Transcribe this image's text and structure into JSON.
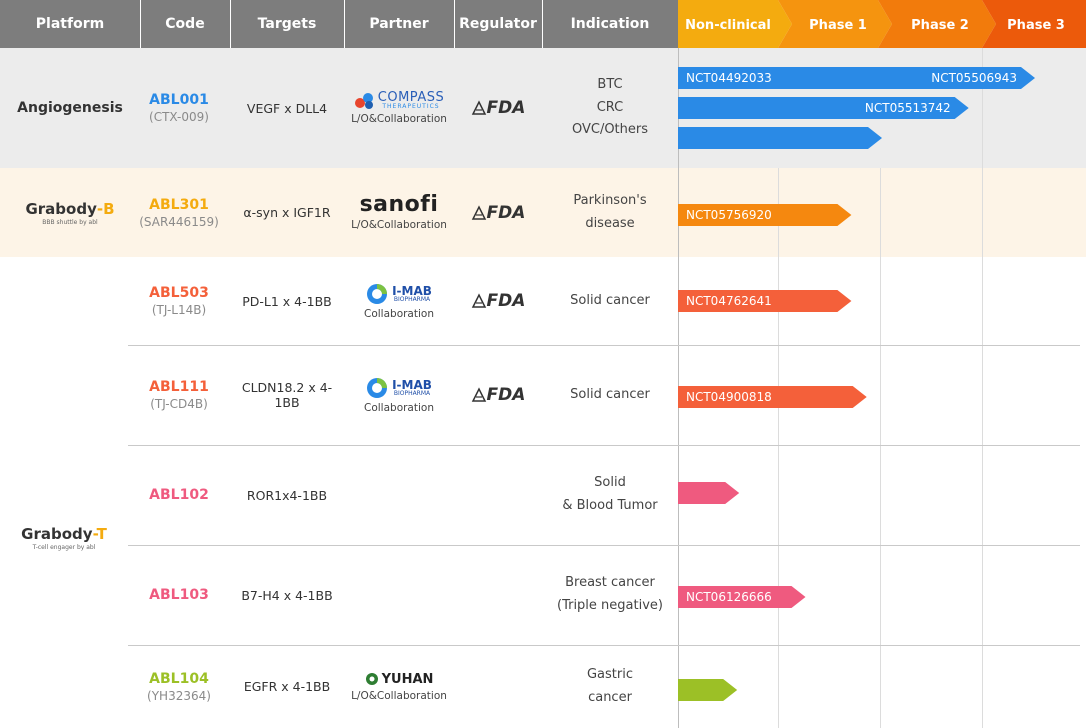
{
  "header": {
    "platform": "Platform",
    "code": "Code",
    "targets": "Targets",
    "partner": "Partner",
    "regulator": "Regulator",
    "indication": "Indication",
    "phases": [
      "Non-clinical",
      "Phase 1",
      "Phase 2",
      "Phase 3"
    ]
  },
  "colors": {
    "header_grey": "#7d7d7d",
    "phase_colors": [
      "#f4ab0f",
      "#f5940f",
      "#f27b0c",
      "#ec5a0b"
    ],
    "row1_bg": "#ececec",
    "row2_bg": "#fdf4e7",
    "blue": "#2a8ae6",
    "orange": "#f5880f",
    "red_orange": "#f4603a",
    "pink": "#ef5a7f",
    "green": "#9cc026"
  },
  "platforms": {
    "angiogenesis": "Angiogenesis",
    "grabody_b_main": "Grabody",
    "grabody_b_suffix": "-B",
    "grabody_b_sub": "BBB shuttle by abl",
    "grabody_t_main": "Grabody",
    "grabody_t_suffix": "-T",
    "grabody_t_sub": "T-cell engager by abl"
  },
  "rows": [
    {
      "code": "ABL001",
      "sub": "(CTX-009)",
      "code_color": "#2a8ae6",
      "target": "VEGF x DLL4",
      "partner": "COMPASS",
      "partner_sub": "THERAPEUTICS",
      "partner_caption": "L/O&Collaboration",
      "regulator": "FDA",
      "indications": [
        "BTC",
        "CRC",
        "OVC/Others"
      ],
      "bars": [
        {
          "label": "NCT04492033",
          "label2": "NCT05506943",
          "end_phase": 3.5,
          "color": "#2a8ae6"
        },
        {
          "label": "",
          "label2": "NCT05513742",
          "end_phase": 2.85,
          "color": "#2a8ae6"
        },
        {
          "label": "",
          "label2": "",
          "end_phase": 2.0,
          "color": "#2a8ae6"
        }
      ]
    },
    {
      "code": "ABL301",
      "sub": "(SAR446159)",
      "code_color": "#f4ab0f",
      "target": "α-syn x IGF1R",
      "partner": "sanofi",
      "partner_caption": "L/O&Collaboration",
      "regulator": "FDA",
      "indications": [
        "Parkinson's",
        "disease"
      ],
      "bars": [
        {
          "label": "NCT05756920",
          "end_phase": 1.7,
          "color": "#f5880f"
        }
      ]
    },
    {
      "code": "ABL503",
      "sub": "(TJ-L14B)",
      "code_color": "#f4603a",
      "target": "PD-L1 x 4-1BB",
      "partner": "I-MAB",
      "partner_sub": "BIOPHARMA",
      "partner_caption": "Collaboration",
      "regulator": "FDA",
      "indications": [
        "Solid cancer"
      ],
      "bars": [
        {
          "label": "NCT04762641",
          "end_phase": 1.7,
          "color": "#f4603a"
        }
      ]
    },
    {
      "code": "ABL111",
      "sub": "(TJ-CD4B)",
      "code_color": "#f4603a",
      "target": "CLDN18.2 x 4-1BB",
      "partner": "I-MAB",
      "partner_sub": "BIOPHARMA",
      "partner_caption": "Collaboration",
      "regulator": "FDA",
      "indications": [
        "Solid cancer"
      ],
      "bars": [
        {
          "label": "NCT04900818",
          "end_phase": 1.85,
          "color": "#f4603a"
        }
      ]
    },
    {
      "code": "ABL102",
      "sub": "",
      "code_color": "#ef5a7f",
      "target": "ROR1x4-1BB",
      "indications": [
        "Solid",
        "& Blood Tumor"
      ],
      "bars": [
        {
          "label": "",
          "end_phase": 0.6,
          "color": "#ef5a7f"
        }
      ]
    },
    {
      "code": "ABL103",
      "sub": "",
      "code_color": "#ef5a7f",
      "target": "B7-H4 x 4-1BB",
      "indications": [
        "Breast cancer",
        "(Triple negative)"
      ],
      "bars": [
        {
          "label": "NCT06126666",
          "end_phase": 1.25,
          "color": "#ef5a7f"
        }
      ]
    },
    {
      "code": "ABL104",
      "sub": "(YH32364)",
      "code_color": "#9cc026",
      "target": "EGFR x 4-1BB",
      "partner": "YUHAN",
      "partner_caption": "L/O&Collaboration",
      "indications": [
        "Gastric",
        "cancer"
      ],
      "bars": [
        {
          "label": "",
          "end_phase": 0.58,
          "color": "#9cc026"
        }
      ]
    }
  ]
}
